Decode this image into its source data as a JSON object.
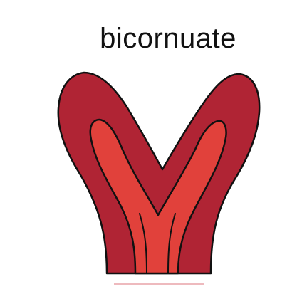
{
  "figure": {
    "title": "bicornuate"
  },
  "colors": {
    "outer_wall": "#b02434",
    "inner_cavity": "#e1413b",
    "outline": "#111111",
    "base_line": "#e9a3a8",
    "background": "#ffffff"
  }
}
